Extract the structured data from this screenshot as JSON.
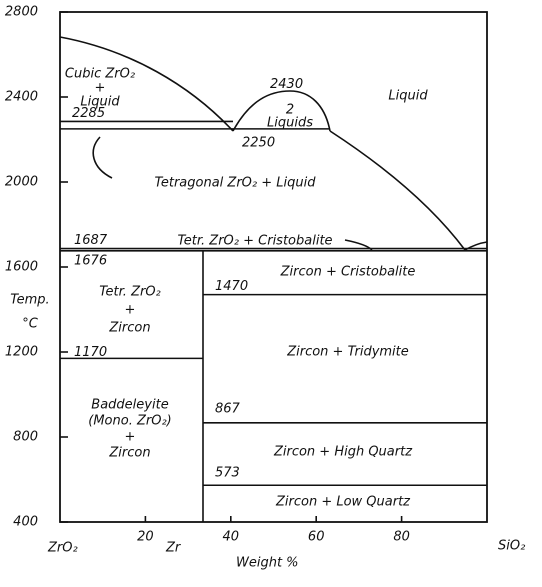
{
  "y_axis": {
    "range": [
      400,
      2800
    ],
    "ticks": [
      400,
      800,
      1200,
      1600,
      2000,
      2400,
      2800
    ],
    "label": [
      "Temp.",
      "°C"
    ]
  },
  "x_axis": {
    "range": [
      0,
      100
    ],
    "ticks": [
      20,
      40,
      60,
      80
    ],
    "left": "ZrO₂",
    "right": "SiO₂",
    "zircon": "Zr",
    "title": "Weight %"
  },
  "isotherms": [
    2285,
    2250,
    2430,
    1687,
    1676,
    1470,
    1170,
    867,
    573
  ],
  "regions": [
    [
      "Cubic ZrO₂",
      "+",
      "Liquid"
    ],
    [
      "2",
      "Liquids"
    ],
    [
      "Liquid"
    ],
    [
      "Tetragonal ZrO₂ + Liquid"
    ],
    [
      "Tetr. ZrO₂ + Cristobalite"
    ],
    [
      "Tetr. ZrO₂",
      "+",
      "Zircon"
    ],
    [
      "Baddeleyite",
      "(Mono. ZrO₂)",
      "+",
      "Zircon"
    ],
    [
      "Zircon + Cristobalite"
    ],
    [
      "Zircon + Tridymite"
    ],
    [
      "Zircon + High Quartz"
    ],
    [
      "Zircon + Low Quartz"
    ]
  ]
}
